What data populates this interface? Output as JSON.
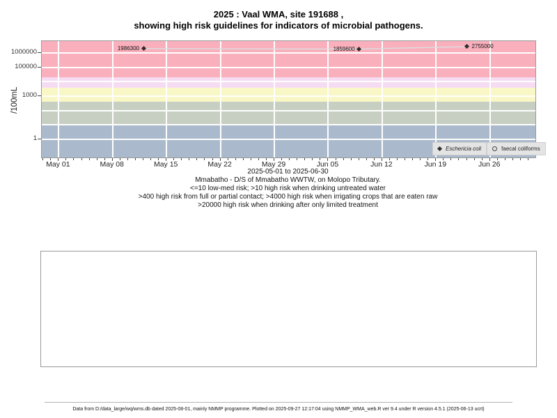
{
  "title": {
    "line1": "2025 : Vaal WMA, site 191688 ,",
    "line2": "showing high risk guidelines for indicators of microbial pathogens."
  },
  "subtitle": {
    "date_range": "2025-05-01 to 2025-06-30",
    "site": "Mmabatho - D/S of Mmabatho WWTW, on Molopo Tributary.",
    "risk_line1": "<=10 low-med risk; >10 high risk when drinking untreated water",
    "risk_line2": ">400 high risk from full or partial contact; >4000 high risk when irrigating crops that are eaten raw",
    "risk_line3": ">20000 high risk when drinking after only limited treatment"
  },
  "footer": {
    "text": "Data from D:/data_large/wq/wms.db dated 2025-08-01, mainly NMMP programme. Plotted on 2025-09-27 12:17:04 using NMMP_WMA_web.R ver 9.4 under R version 4.5.1 (2025-06-13 ucrt)"
  },
  "chart_data": {
    "type": "line",
    "title": "2025 : Vaal WMA, site 191688 , showing high risk guidelines for indicators of microbial pathogens.",
    "ylabel": "/100mL",
    "xlabel": "",
    "y_log_scale": true,
    "y_axis": {
      "log_min": -1.25,
      "log_max": 6.82,
      "tick_values": [
        1,
        1000,
        100000,
        1000000
      ],
      "tick_labels": [
        "1",
        "1000",
        "100000",
        "1000000"
      ],
      "gridline_values": [
        1,
        10,
        100,
        1000,
        10000,
        100000,
        1000000
      ]
    },
    "x_axis": {
      "epoch": "2025-05-01",
      "start_day": -2.2,
      "end_day": 61.9,
      "major_ticks": [
        {
          "day": 0,
          "label": "May 01"
        },
        {
          "day": 7,
          "label": "May 08"
        },
        {
          "day": 14,
          "label": "May 15"
        },
        {
          "day": 21,
          "label": "May 22"
        },
        {
          "day": 28,
          "label": "May 29"
        },
        {
          "day": 35,
          "label": "Jun 05"
        },
        {
          "day": 42,
          "label": "Jun 12"
        },
        {
          "day": 49,
          "label": "Jun 19"
        },
        {
          "day": 56,
          "label": "Jun 26"
        }
      ],
      "minor_tick_every_days": 1
    },
    "risk_bands": [
      {
        "name": "low-med risk",
        "from": null,
        "to": 10,
        "color": "#AAB9CC"
      },
      {
        "name": "high risk when drinking untreated water",
        "from": 10,
        "to": 400,
        "color": "#C6CFC1"
      },
      {
        "name": "high risk from full or partial contact",
        "from": 400,
        "to": 4000,
        "color": "#F9F7C6"
      },
      {
        "name": "high risk when irrigating crops that are eaten raw",
        "from": 4000,
        "to": 20000,
        "color": "#F6DCF3"
      },
      {
        "name": "high risk when drinking after only limited treatment",
        "from": 20000,
        "to": null,
        "color": "#F9AFBC"
      }
    ],
    "grid_color": "#FFFFFF",
    "line_color": "#DCDCDC",
    "marker_color": "#2E2E2E",
    "series": [
      {
        "name": "Eschericia coli",
        "marker": "filled-diamond",
        "points": [
          {
            "date": "2025-05-12",
            "value": 1986300,
            "label": "1986300",
            "label_side": "left"
          },
          {
            "date": "2025-06-09",
            "value": 1859600,
            "label": "1859600",
            "label_side": "left"
          },
          {
            "date": "2025-06-23",
            "value": 2755000,
            "label": "2755000",
            "label_side": "right"
          }
        ]
      },
      {
        "name": "faecal coliforms",
        "marker": "open-circle",
        "points": []
      }
    ],
    "legend": {
      "position": "bottom-right-inside",
      "entries": [
        {
          "label": "Eschericia coli",
          "marker": "filled-diamond",
          "italic": true
        },
        {
          "label": "faecal coliforms",
          "marker": "open-circle",
          "italic": false
        }
      ]
    }
  }
}
